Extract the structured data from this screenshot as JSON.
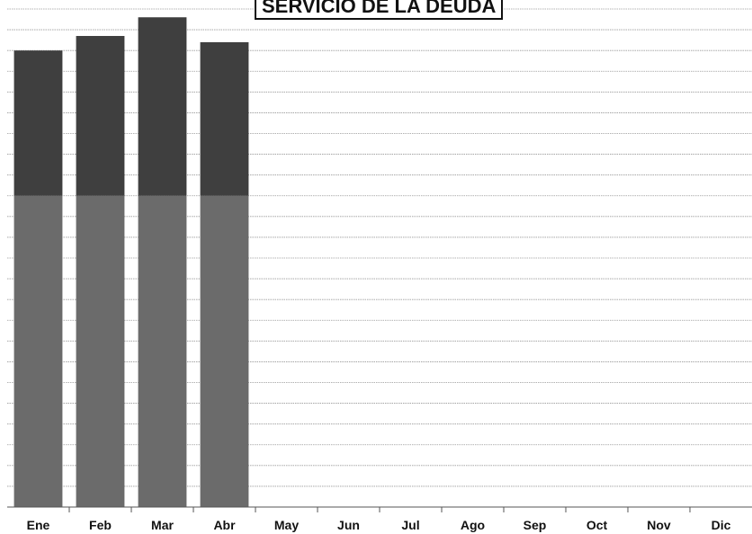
{
  "chart_data": {
    "type": "bar",
    "title": "SERVICIO DE LA DEUDA",
    "categories": [
      "Ene",
      "Feb",
      "Mar",
      "Abr",
      "May",
      "Jun",
      "Jul",
      "Ago",
      "Sep",
      "Oct",
      "Nov",
      "Dic"
    ],
    "series": [
      {
        "values": [
          7.5,
          7.5,
          7.5,
          7.5,
          null,
          null,
          null,
          null,
          null,
          null,
          null,
          null
        ],
        "color": "#6b6b6b"
      },
      {
        "values": [
          3.5,
          3.85,
          4.3,
          3.7,
          null,
          null,
          null,
          null,
          null,
          null,
          null,
          null
        ],
        "color": "#3f3f3f"
      }
    ],
    "stacked": true,
    "ylim": [
      0,
      12
    ],
    "grid": true,
    "xlabel": "",
    "ylabel": ""
  }
}
